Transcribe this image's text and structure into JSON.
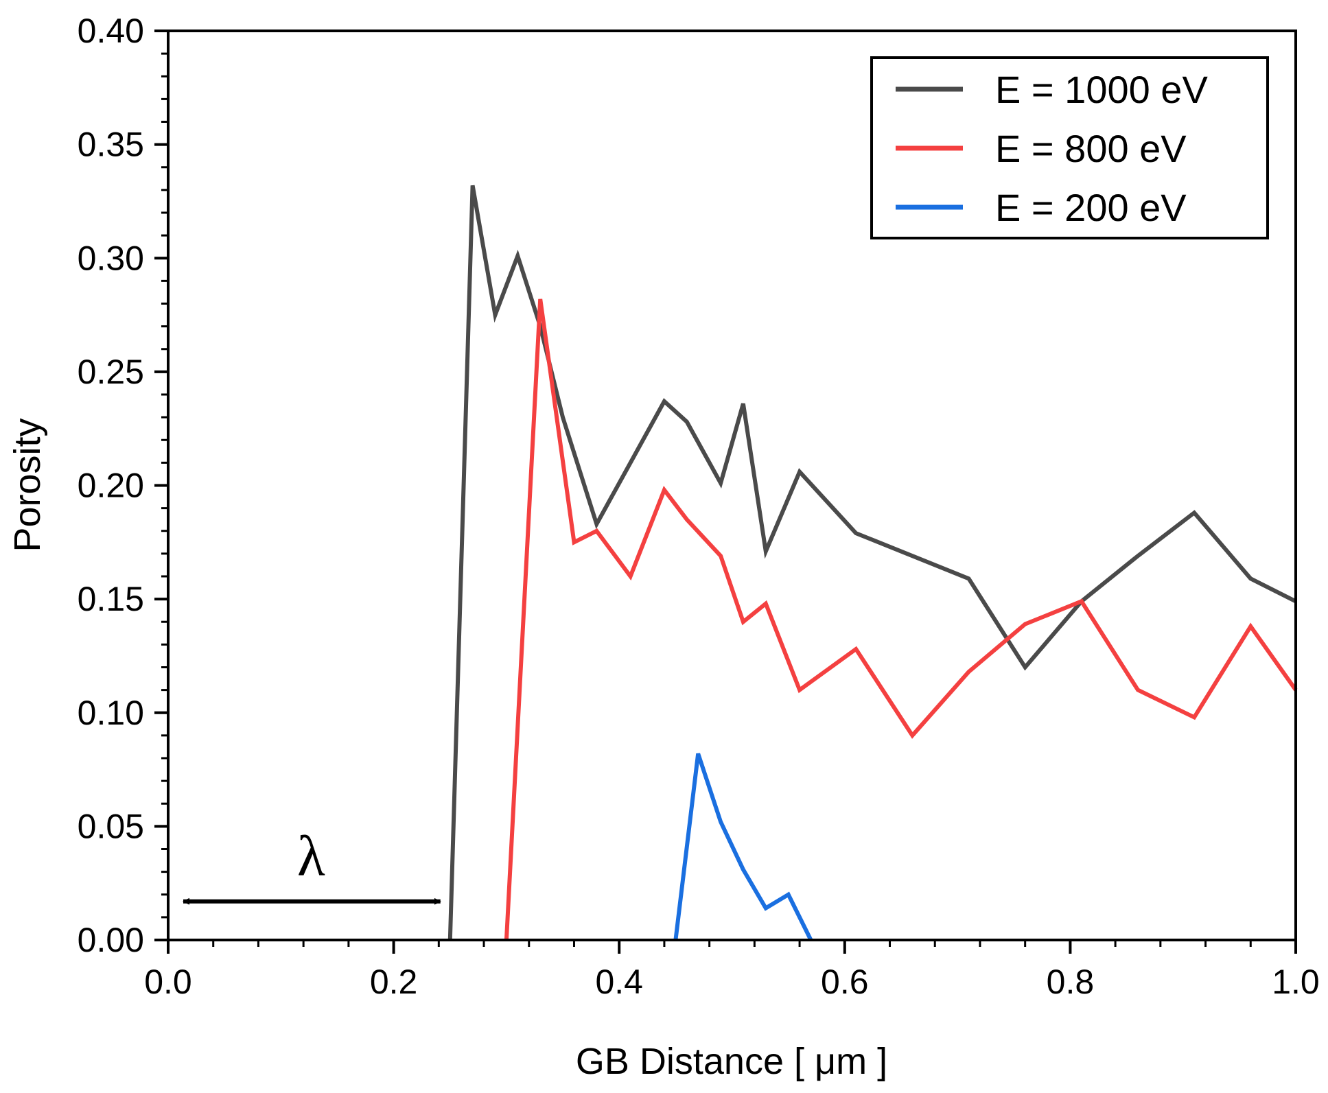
{
  "chart_data": {
    "type": "line",
    "title": "",
    "xlabel": "GB Distance [ μm ]",
    "ylabel": "Porosity",
    "xlim": [
      0.0,
      1.0
    ],
    "ylim": [
      0.0,
      0.4
    ],
    "x_ticks": [
      "0.0",
      "0.2",
      "0.4",
      "0.6",
      "0.8",
      "1.0"
    ],
    "y_ticks": [
      "0.00",
      "0.05",
      "0.10",
      "0.15",
      "0.20",
      "0.25",
      "0.30",
      "0.35",
      "0.40"
    ],
    "grid": false,
    "legend_position": "top-right",
    "series": [
      {
        "name": "E = 1000 eV",
        "color": "#4a4a4a",
        "x": [
          0.25,
          0.27,
          0.29,
          0.31,
          0.33,
          0.35,
          0.38,
          0.41,
          0.44,
          0.46,
          0.49,
          0.51,
          0.53,
          0.56,
          0.61,
          0.71,
          0.76,
          0.81,
          0.86,
          0.91,
          0.96,
          1.0
        ],
        "y": [
          0.0,
          0.332,
          0.275,
          0.301,
          0.27,
          0.23,
          0.183,
          0.21,
          0.237,
          0.228,
          0.201,
          0.236,
          0.171,
          0.206,
          0.179,
          0.159,
          0.12,
          0.149,
          0.169,
          0.188,
          0.159,
          0.149
        ]
      },
      {
        "name": "E = 800 eV",
        "color": "#f44040",
        "x": [
          0.3,
          0.33,
          0.36,
          0.38,
          0.41,
          0.44,
          0.46,
          0.49,
          0.51,
          0.53,
          0.56,
          0.61,
          0.66,
          0.71,
          0.76,
          0.81,
          0.86,
          0.91,
          0.96,
          1.0
        ],
        "y": [
          0.0,
          0.282,
          0.175,
          0.18,
          0.16,
          0.198,
          0.185,
          0.169,
          0.14,
          0.148,
          0.11,
          0.128,
          0.09,
          0.118,
          0.139,
          0.149,
          0.11,
          0.098,
          0.138,
          0.11
        ]
      },
      {
        "name": "E = 200 eV",
        "color": "#1a6fe0",
        "x": [
          0.45,
          0.47,
          0.49,
          0.51,
          0.53,
          0.55,
          0.57
        ],
        "y": [
          0.0,
          0.082,
          0.052,
          0.031,
          0.014,
          0.02,
          0.0
        ]
      }
    ],
    "annotations": [
      {
        "text": "λ",
        "type": "double-arrow",
        "x_from": 0.0,
        "x_to": 0.25,
        "y": 0.017
      }
    ]
  }
}
